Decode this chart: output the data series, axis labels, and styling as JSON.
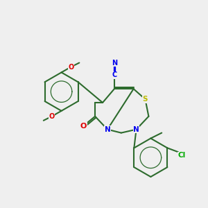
{
  "background_color": "#EFEFEF",
  "bond_color": "#2d6b2d",
  "atom_colors": {
    "N": "#0000EE",
    "O": "#DD0000",
    "S": "#BBBB00",
    "Cl": "#00AA00",
    "CN_blue": "#0000EE"
  },
  "figsize": [
    3.0,
    3.0
  ],
  "dpi": 100
}
